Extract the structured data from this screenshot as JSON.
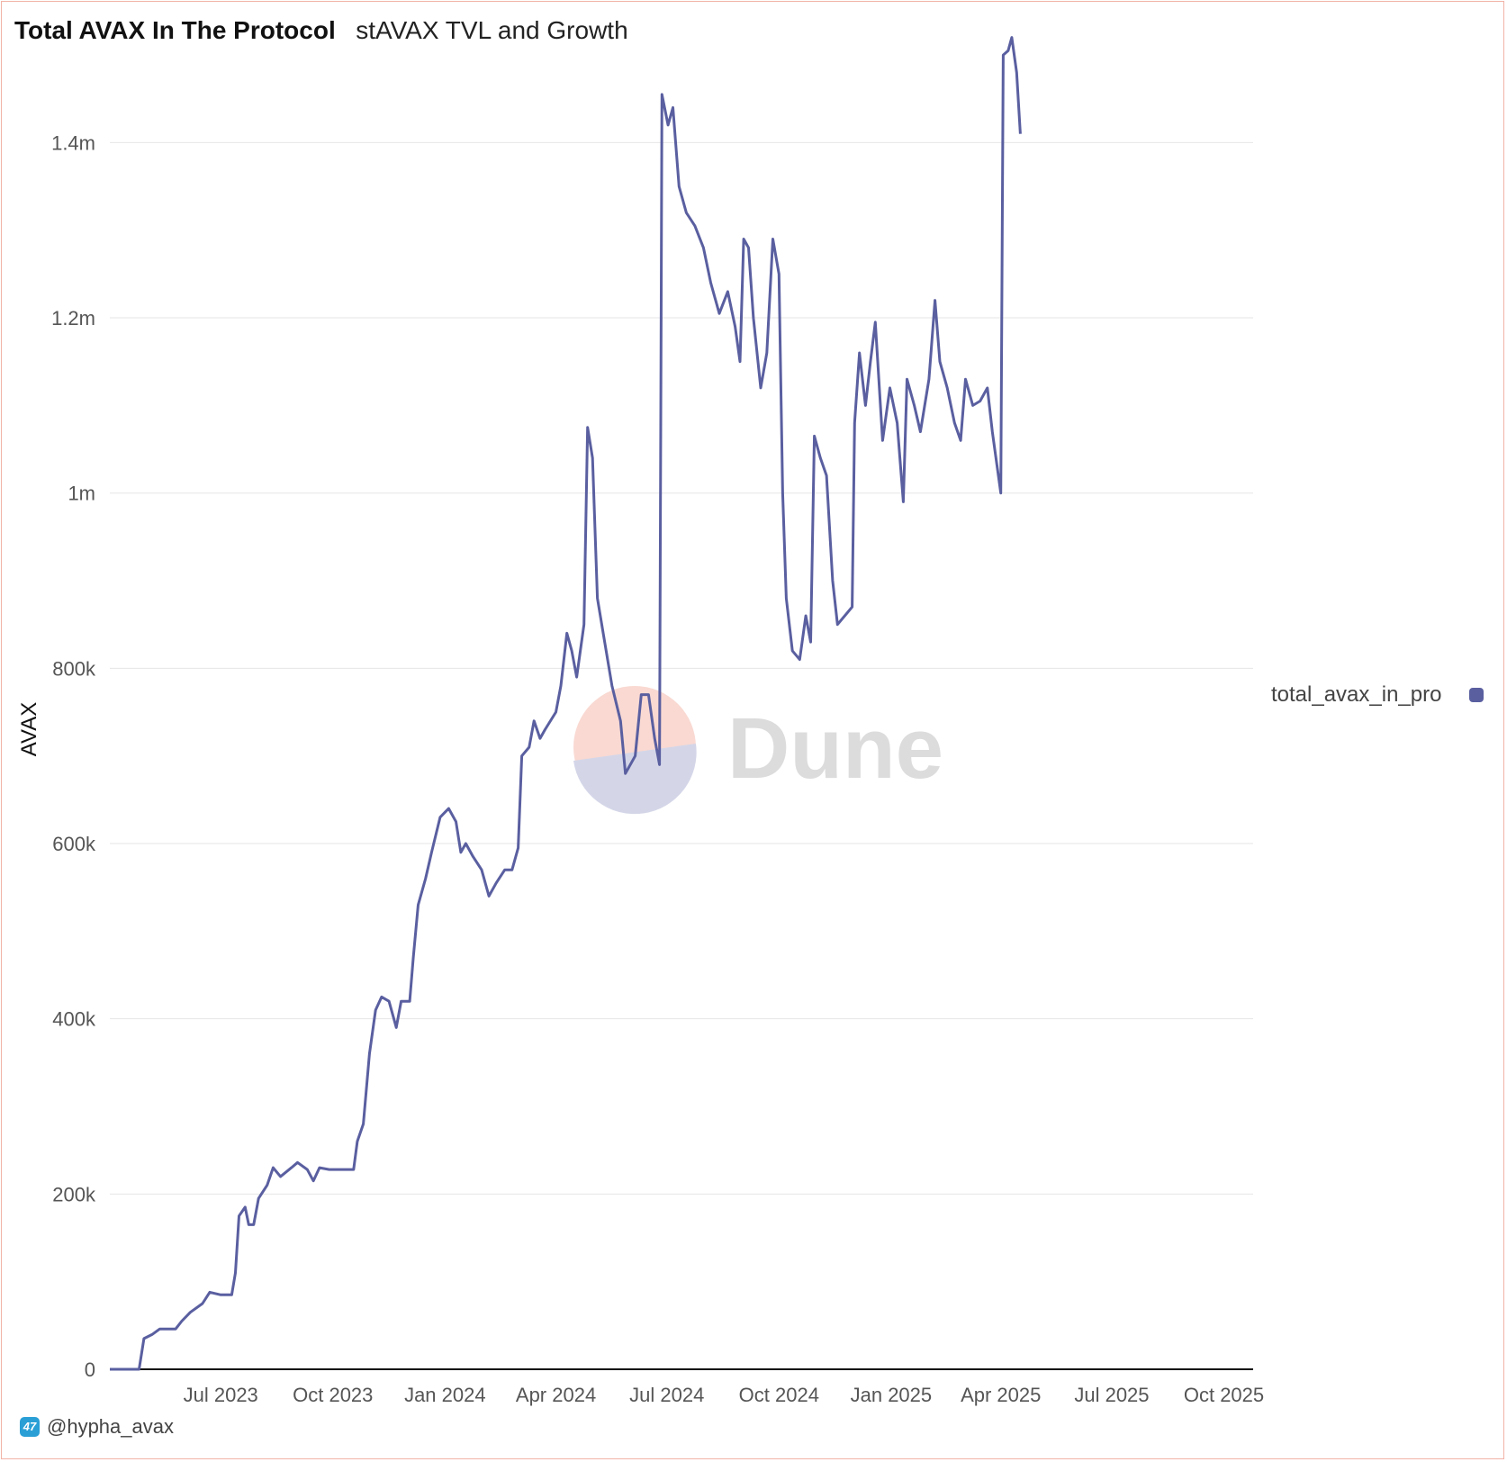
{
  "header": {
    "title": "Total AVAX In The Protocol",
    "subtitle": "stAVAX TVL and Growth"
  },
  "watermark": {
    "text": "Dune"
  },
  "footer": {
    "author": "@hypha_avax",
    "icon": "dune-user-icon"
  },
  "colors": {
    "series": "#5a5fa0",
    "grid": "#e6e6e6",
    "axis": "#111111",
    "frame": "#f2b3a6"
  },
  "chart_data": {
    "type": "line",
    "title": "Total AVAX In The Protocol",
    "subtitle": "stAVAX TVL and Growth",
    "xlabel": "",
    "ylabel": "AVAX",
    "ylim": [
      0,
      1460000
    ],
    "xlim": [
      "2023-04-01",
      "2025-10-25"
    ],
    "y_ticks": [
      {
        "value": 0,
        "label": "0"
      },
      {
        "value": 200000,
        "label": "200k"
      },
      {
        "value": 400000,
        "label": "400k"
      },
      {
        "value": 600000,
        "label": "600k"
      },
      {
        "value": 800000,
        "label": "800k"
      },
      {
        "value": 1000000,
        "label": "1m"
      },
      {
        "value": 1200000,
        "label": "1.2m"
      },
      {
        "value": 1400000,
        "label": "1.4m"
      }
    ],
    "x_ticks": [
      {
        "value": "2023-07-01",
        "label": "Jul 2023"
      },
      {
        "value": "2023-10-01",
        "label": "Oct 2023"
      },
      {
        "value": "2024-01-01",
        "label": "Jan 2024"
      },
      {
        "value": "2024-04-01",
        "label": "Apr 2024"
      },
      {
        "value": "2024-07-01",
        "label": "Jul 2024"
      },
      {
        "value": "2024-10-01",
        "label": "Oct 2024"
      },
      {
        "value": "2025-01-01",
        "label": "Jan 2025"
      },
      {
        "value": "2025-04-01",
        "label": "Apr 2025"
      },
      {
        "value": "2025-07-01",
        "label": "Jul 2025"
      },
      {
        "value": "2025-10-01",
        "label": "Oct 2025"
      }
    ],
    "grid": true,
    "legend_position": "right",
    "series": [
      {
        "name": "total_avax_in_pro",
        "color": "#5a5fa0",
        "points": [
          [
            "2023-04-01",
            0
          ],
          [
            "2023-04-25",
            0
          ],
          [
            "2023-04-29",
            35000
          ],
          [
            "2023-05-06",
            40000
          ],
          [
            "2023-05-12",
            46000
          ],
          [
            "2023-05-25",
            46000
          ],
          [
            "2023-05-30",
            55000
          ],
          [
            "2023-06-06",
            65000
          ],
          [
            "2023-06-16",
            75000
          ],
          [
            "2023-06-22",
            88000
          ],
          [
            "2023-07-01",
            85000
          ],
          [
            "2023-07-10",
            85000
          ],
          [
            "2023-07-13",
            110000
          ],
          [
            "2023-07-16",
            175000
          ],
          [
            "2023-07-21",
            185000
          ],
          [
            "2023-07-24",
            165000
          ],
          [
            "2023-07-28",
            165000
          ],
          [
            "2023-08-01",
            195000
          ],
          [
            "2023-08-08",
            210000
          ],
          [
            "2023-08-13",
            230000
          ],
          [
            "2023-08-19",
            220000
          ],
          [
            "2023-08-28",
            230000
          ],
          [
            "2023-09-02",
            236000
          ],
          [
            "2023-09-10",
            228000
          ],
          [
            "2023-09-15",
            215000
          ],
          [
            "2023-09-20",
            230000
          ],
          [
            "2023-09-28",
            228000
          ],
          [
            "2023-10-10",
            228000
          ],
          [
            "2023-10-18",
            228000
          ],
          [
            "2023-10-21",
            260000
          ],
          [
            "2023-10-26",
            280000
          ],
          [
            "2023-10-31",
            360000
          ],
          [
            "2023-11-05",
            410000
          ],
          [
            "2023-11-10",
            425000
          ],
          [
            "2023-11-16",
            420000
          ],
          [
            "2023-11-22",
            390000
          ],
          [
            "2023-11-26",
            420000
          ],
          [
            "2023-12-03",
            420000
          ],
          [
            "2023-12-06",
            470000
          ],
          [
            "2023-12-10",
            530000
          ],
          [
            "2023-12-16",
            560000
          ],
          [
            "2023-12-21",
            590000
          ],
          [
            "2023-12-28",
            630000
          ],
          [
            "2024-01-04",
            640000
          ],
          [
            "2024-01-10",
            625000
          ],
          [
            "2024-01-14",
            590000
          ],
          [
            "2024-01-18",
            600000
          ],
          [
            "2024-01-24",
            585000
          ],
          [
            "2024-01-31",
            570000
          ],
          [
            "2024-02-06",
            540000
          ],
          [
            "2024-02-12",
            555000
          ],
          [
            "2024-02-19",
            570000
          ],
          [
            "2024-02-25",
            570000
          ],
          [
            "2024-03-01",
            595000
          ],
          [
            "2024-03-04",
            700000
          ],
          [
            "2024-03-10",
            710000
          ],
          [
            "2024-03-14",
            740000
          ],
          [
            "2024-03-19",
            720000
          ],
          [
            "2024-03-23",
            730000
          ],
          [
            "2024-04-01",
            750000
          ],
          [
            "2024-04-05",
            780000
          ],
          [
            "2024-04-10",
            840000
          ],
          [
            "2024-04-14",
            820000
          ],
          [
            "2024-04-18",
            790000
          ],
          [
            "2024-04-24",
            850000
          ],
          [
            "2024-04-27",
            1075000
          ],
          [
            "2024-05-01",
            1040000
          ],
          [
            "2024-05-05",
            880000
          ],
          [
            "2024-05-11",
            830000
          ],
          [
            "2024-05-17",
            780000
          ],
          [
            "2024-05-24",
            740000
          ],
          [
            "2024-05-28",
            680000
          ],
          [
            "2024-06-05",
            700000
          ],
          [
            "2024-06-10",
            770000
          ],
          [
            "2024-06-16",
            770000
          ],
          [
            "2024-06-21",
            720000
          ],
          [
            "2024-06-25",
            690000
          ],
          [
            "2024-06-27",
            1455000
          ],
          [
            "2024-07-02",
            1420000
          ],
          [
            "2024-07-06",
            1440000
          ],
          [
            "2024-07-11",
            1350000
          ],
          [
            "2024-07-17",
            1320000
          ],
          [
            "2024-07-24",
            1305000
          ],
          [
            "2024-07-31",
            1280000
          ],
          [
            "2024-08-06",
            1240000
          ],
          [
            "2024-08-13",
            1205000
          ],
          [
            "2024-08-20",
            1230000
          ],
          [
            "2024-08-26",
            1190000
          ],
          [
            "2024-08-30",
            1150000
          ],
          [
            "2024-09-02",
            1290000
          ],
          [
            "2024-09-06",
            1280000
          ],
          [
            "2024-09-10",
            1200000
          ],
          [
            "2024-09-16",
            1120000
          ],
          [
            "2024-09-21",
            1160000
          ],
          [
            "2024-09-26",
            1290000
          ],
          [
            "2024-10-01",
            1250000
          ],
          [
            "2024-10-04",
            1000000
          ],
          [
            "2024-10-07",
            880000
          ],
          [
            "2024-10-12",
            820000
          ],
          [
            "2024-10-18",
            810000
          ],
          [
            "2024-10-23",
            860000
          ],
          [
            "2024-10-27",
            830000
          ],
          [
            "2024-10-30",
            1065000
          ],
          [
            "2024-11-04",
            1040000
          ],
          [
            "2024-11-09",
            1020000
          ],
          [
            "2024-11-14",
            900000
          ],
          [
            "2024-11-18",
            850000
          ],
          [
            "2024-11-24",
            860000
          ],
          [
            "2024-11-30",
            870000
          ],
          [
            "2024-12-02",
            1080000
          ],
          [
            "2024-12-06",
            1160000
          ],
          [
            "2024-12-11",
            1100000
          ],
          [
            "2024-12-15",
            1150000
          ],
          [
            "2024-12-19",
            1195000
          ],
          [
            "2024-12-25",
            1060000
          ],
          [
            "2024-12-31",
            1120000
          ],
          [
            "2025-01-06",
            1080000
          ],
          [
            "2025-01-11",
            990000
          ],
          [
            "2025-01-14",
            1130000
          ],
          [
            "2025-01-20",
            1100000
          ],
          [
            "2025-01-25",
            1070000
          ],
          [
            "2025-02-01",
            1130000
          ],
          [
            "2025-02-06",
            1220000
          ],
          [
            "2025-02-10",
            1150000
          ],
          [
            "2025-02-16",
            1120000
          ],
          [
            "2025-02-22",
            1080000
          ],
          [
            "2025-02-27",
            1060000
          ],
          [
            "2025-03-03",
            1130000
          ],
          [
            "2025-03-09",
            1100000
          ],
          [
            "2025-03-15",
            1105000
          ],
          [
            "2025-03-21",
            1120000
          ],
          [
            "2025-03-25",
            1070000
          ],
          [
            "2025-03-30",
            1020000
          ],
          [
            "2025-04-01",
            1000000
          ],
          [
            "2025-04-03",
            1500000
          ],
          [
            "2025-04-07",
            1505000
          ],
          [
            "2025-04-10",
            1520000
          ],
          [
            "2025-04-14",
            1480000
          ],
          [
            "2025-04-17",
            1410000
          ]
        ]
      }
    ]
  }
}
